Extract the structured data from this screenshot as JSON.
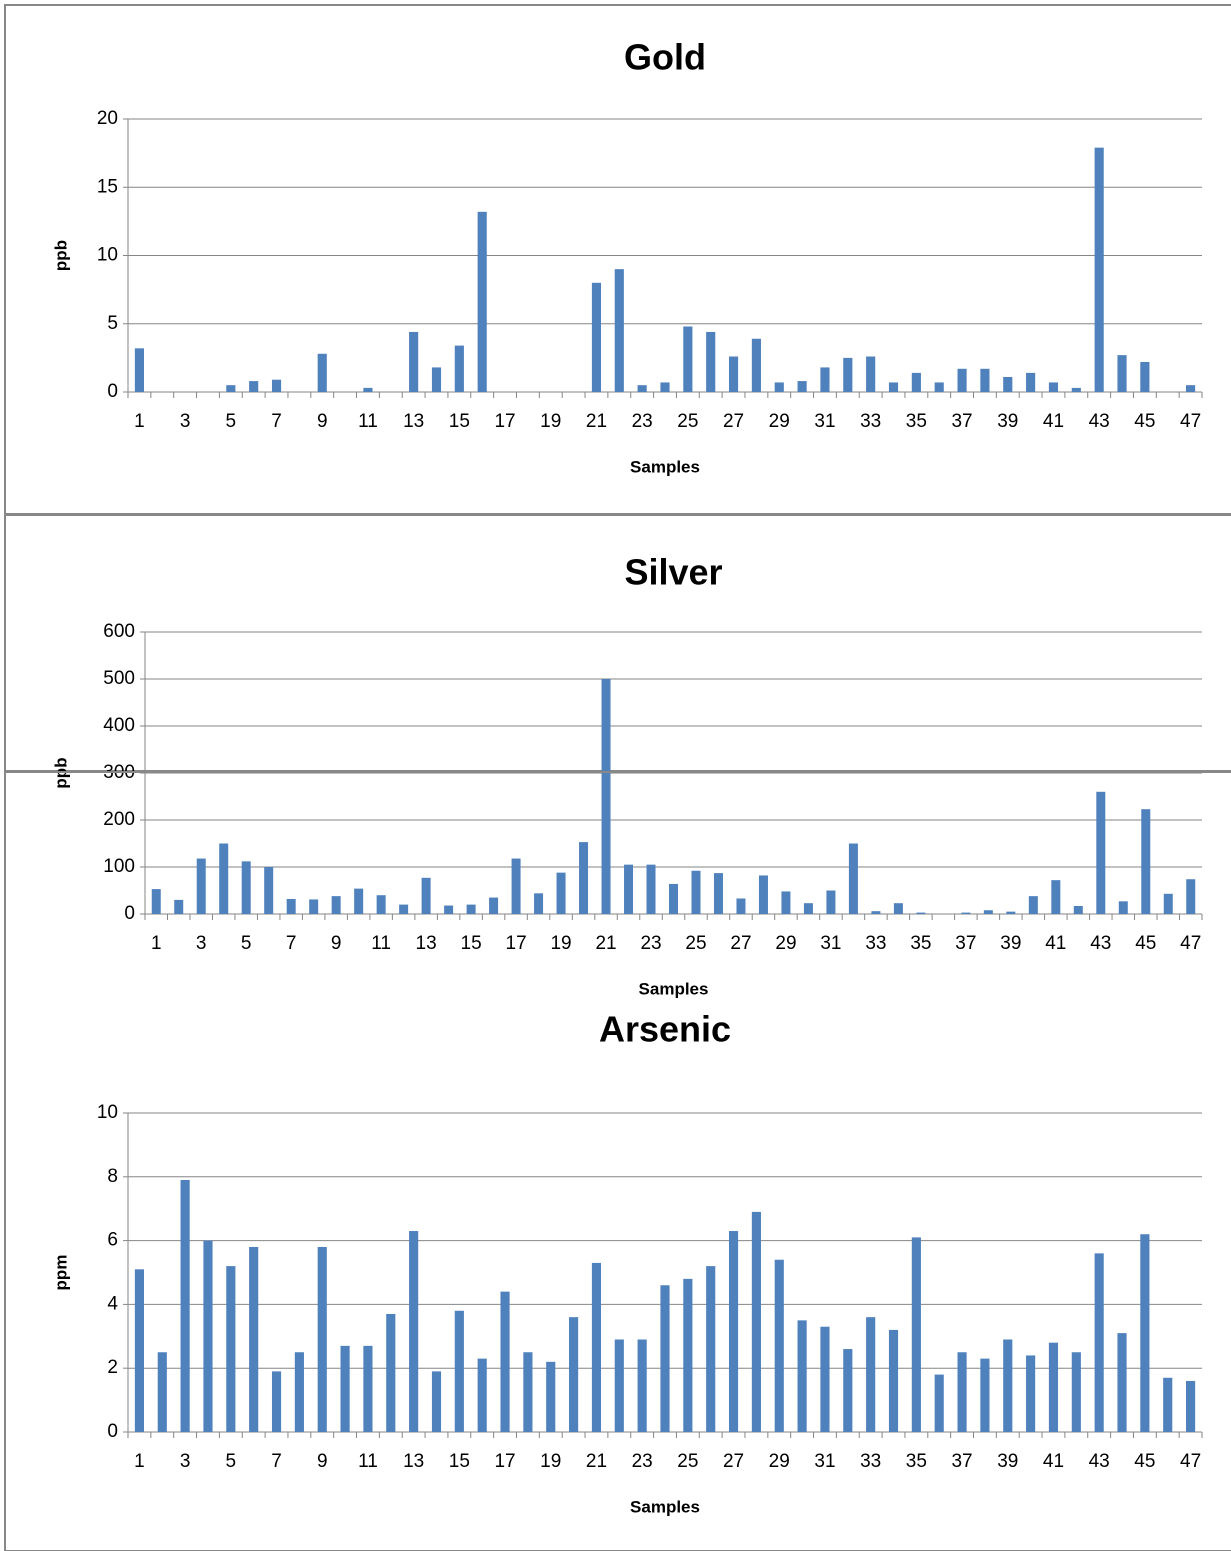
{
  "chart_data": [
    {
      "type": "bar",
      "title": "Gold",
      "xlabel": "Samples",
      "ylabel": "ppb",
      "categories": [
        1,
        null,
        3,
        null,
        5,
        null,
        7,
        null,
        9,
        null,
        11,
        null,
        13,
        null,
        15,
        null,
        17,
        null,
        19,
        null,
        21,
        null,
        23,
        null,
        25,
        null,
        27,
        null,
        29,
        null,
        31,
        null,
        33,
        null,
        35,
        null,
        37,
        null,
        39,
        null,
        41,
        null,
        43,
        null,
        45,
        null,
        47
      ],
      "values": [
        3.2,
        0,
        0,
        0,
        0.5,
        0.8,
        0.9,
        0,
        2.8,
        0,
        0.3,
        0,
        4.4,
        1.8,
        3.4,
        13.2,
        0,
        0,
        0,
        0,
        8.0,
        9.0,
        0.5,
        0.7,
        4.8,
        4.4,
        2.6,
        3.9,
        0.7,
        0.8,
        1.8,
        2.5,
        2.6,
        0.7,
        1.4,
        0.7,
        1.7,
        1.7,
        1.1,
        1.4,
        0.7,
        0.3,
        17.9,
        2.7,
        2.2,
        0,
        0.5
      ],
      "color": "#4f81bd",
      "ylim": [
        0,
        20
      ],
      "yticks": [
        0,
        5,
        10,
        15,
        20
      ],
      "grid": true
    },
    {
      "type": "bar",
      "title": "Silver",
      "xlabel": "Samples",
      "ylabel": "ppb",
      "categories": [
        1,
        null,
        3,
        null,
        5,
        null,
        7,
        null,
        9,
        null,
        11,
        null,
        13,
        null,
        15,
        null,
        17,
        null,
        19,
        null,
        21,
        null,
        23,
        null,
        25,
        null,
        27,
        null,
        29,
        null,
        31,
        null,
        33,
        null,
        35,
        null,
        37,
        null,
        39,
        null,
        41,
        null,
        43,
        null,
        45,
        null,
        47
      ],
      "values": [
        53,
        30,
        118,
        150,
        112,
        100,
        32,
        31,
        38,
        54,
        40,
        20,
        77,
        18,
        20,
        35,
        118,
        44,
        88,
        153,
        500,
        105,
        105,
        64,
        92,
        87,
        33,
        82,
        48,
        23,
        50,
        150,
        6,
        23,
        3,
        0,
        3,
        8,
        5,
        38,
        72,
        17,
        260,
        27,
        223,
        43,
        74
      ],
      "color": "#4f81bd",
      "ylim": [
        0,
        600
      ],
      "yticks": [
        0,
        100,
        200,
        300,
        400,
        500,
        600
      ],
      "grid": true
    },
    {
      "type": "bar",
      "title": "Arsenic",
      "xlabel": "Samples",
      "ylabel": "ppm",
      "categories": [
        1,
        null,
        3,
        null,
        5,
        null,
        7,
        null,
        9,
        null,
        11,
        null,
        13,
        null,
        15,
        null,
        17,
        null,
        19,
        null,
        21,
        null,
        23,
        null,
        25,
        null,
        27,
        null,
        29,
        null,
        31,
        null,
        33,
        null,
        35,
        null,
        37,
        null,
        39,
        null,
        41,
        null,
        43,
        null,
        45,
        null,
        47
      ],
      "values": [
        5.1,
        2.5,
        7.9,
        6.0,
        5.2,
        5.8,
        1.9,
        2.5,
        5.8,
        2.7,
        2.7,
        3.7,
        6.3,
        1.9,
        3.8,
        2.3,
        4.4,
        2.5,
        2.2,
        3.6,
        5.3,
        2.9,
        2.9,
        4.6,
        4.8,
        5.2,
        6.3,
        6.9,
        5.4,
        3.5,
        3.3,
        2.6,
        3.6,
        3.2,
        6.1,
        1.8,
        2.5,
        2.3,
        2.9,
        2.4,
        2.8,
        2.5,
        5.6,
        3.1,
        6.2,
        1.7,
        1.6
      ],
      "color": "#4f81bd",
      "ylim": [
        0,
        10
      ],
      "yticks": [
        0,
        2,
        4,
        6,
        8,
        10
      ],
      "grid": true
    }
  ]
}
